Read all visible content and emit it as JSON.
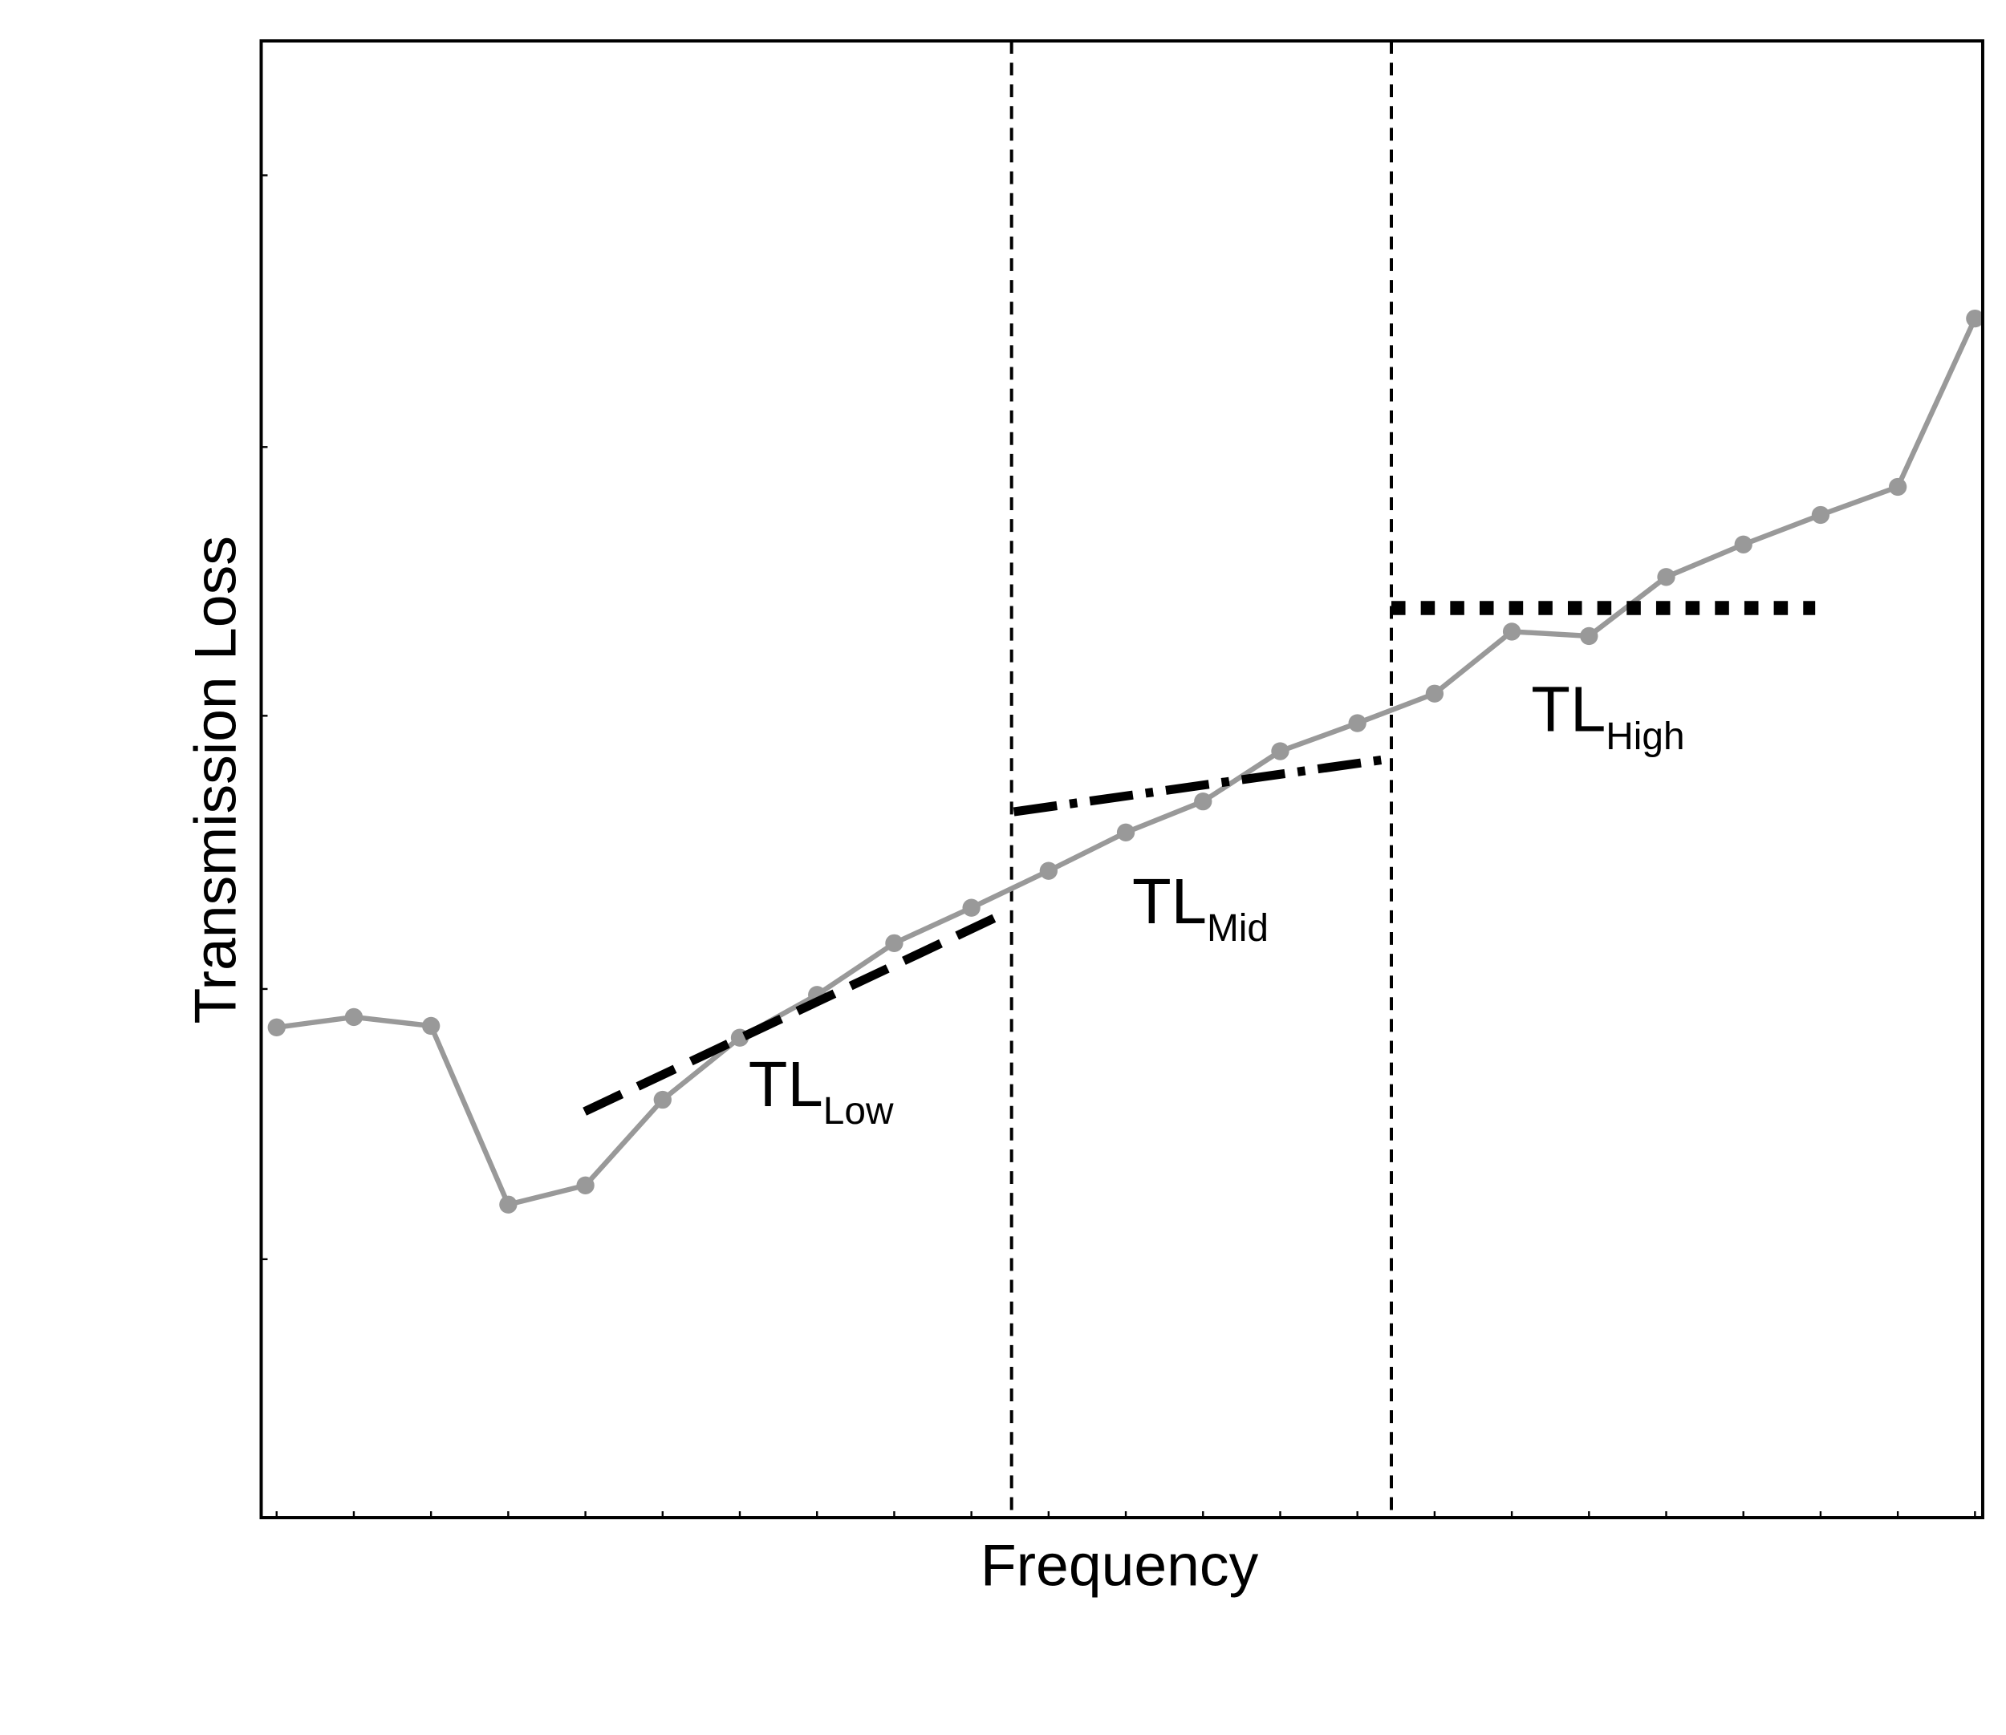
{
  "chart_data": {
    "type": "line",
    "xlabel": "Frequency",
    "ylabel": "Transmission Loss",
    "x": [
      0,
      1,
      2,
      3,
      4,
      5,
      6,
      7,
      8,
      9,
      10,
      11,
      12,
      13,
      14,
      15,
      16,
      17,
      18,
      19,
      20,
      21,
      22
    ],
    "series": [
      {
        "color": "#999999",
        "values": [
          33.2,
          33.9,
          33.3,
          21.2,
          22.5,
          28.3,
          32.5,
          35.4,
          38.9,
          41.3,
          43.8,
          46.4,
          48.5,
          51.9,
          53.8,
          55.8,
          60.0,
          59.7,
          63.7,
          65.9,
          67.9,
          69.8,
          81.2
        ]
      }
    ],
    "fit_lines": [
      {
        "x": [
          3.99,
          9.5
        ],
        "values": [
          27.5,
          41.1
        ],
        "style": "dashed",
        "color": "#000000"
      },
      {
        "x": [
          9.55,
          14.44
        ],
        "values": [
          47.8,
          51.4
        ],
        "style": "dashdot",
        "color": "#000000"
      },
      {
        "x": [
          14.44,
          19.93
        ],
        "values": [
          61.6,
          61.6
        ],
        "style": "dotted",
        "color": "#000000"
      }
    ],
    "vlines": [
      9.52,
      14.44
    ],
    "annotations": [
      {
        "text": "TL",
        "sub": "Low"
      },
      {
        "text": "TL",
        "sub": "Mid"
      },
      {
        "text": "TL",
        "sub": "High"
      }
    ],
    "xlim": [
      -0.2,
      22.1
    ],
    "ylim": [
      0,
      100
    ],
    "xticks": [
      0,
      1,
      2,
      3,
      4,
      5,
      6,
      7,
      8,
      9,
      10,
      11,
      12,
      13,
      14,
      15,
      16,
      17,
      18,
      19,
      20,
      21,
      22
    ],
    "yticks": [
      17.5,
      35.8,
      54.3,
      72.5,
      90.9
    ]
  }
}
